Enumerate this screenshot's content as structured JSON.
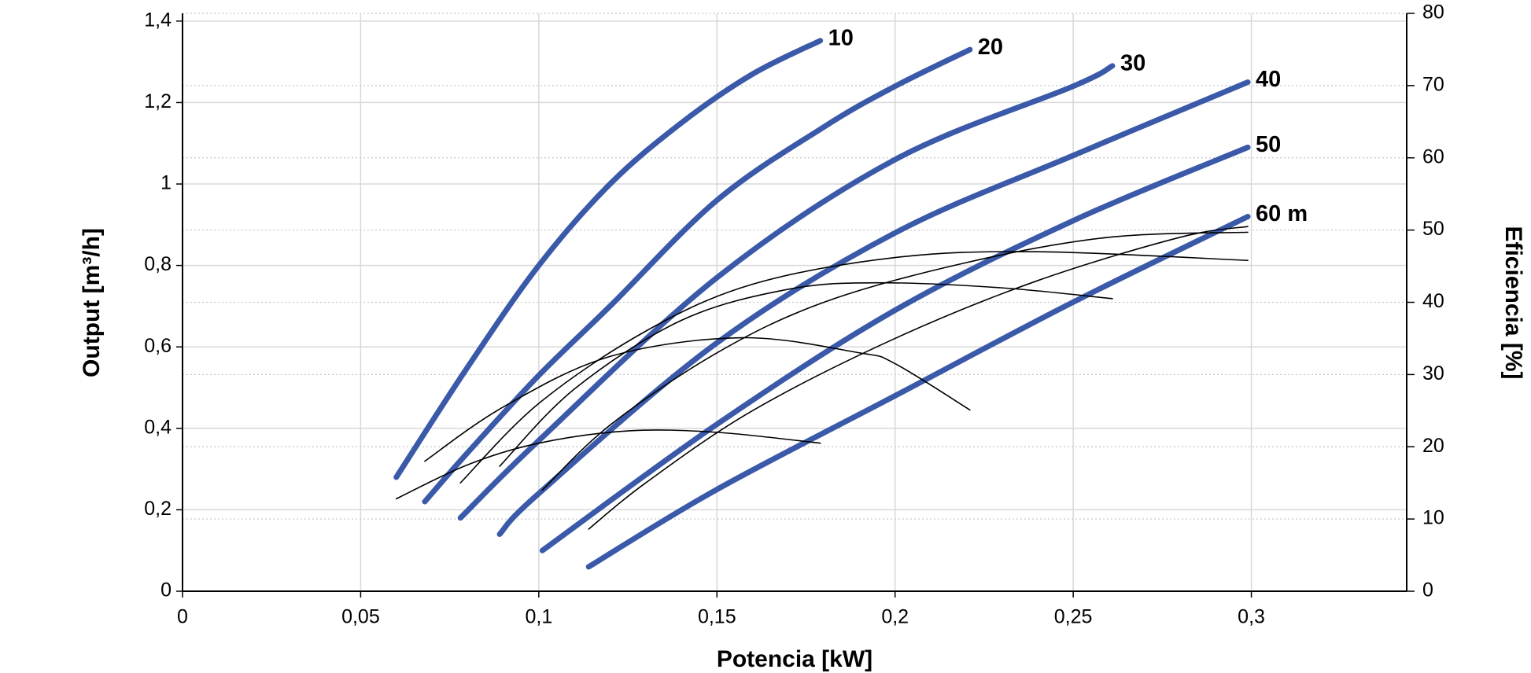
{
  "chart_data": {
    "type": "line",
    "x_label": "Potencia [kW]",
    "y_label": "Output [m³/h]",
    "y2_label": "Eficiencia [%]",
    "xlim": [
      0,
      0.3436
    ],
    "ylim": [
      0,
      1.419
    ],
    "y2lim": [
      0,
      80
    ],
    "xticks": [
      0,
      {
        "value": 0.05,
        "label": "0,05"
      },
      {
        "value": 0.1,
        "label": "0,1"
      },
      {
        "value": 0.15,
        "label": "0,15"
      },
      {
        "value": 0.2,
        "label": "0,2"
      },
      {
        "value": 0.25,
        "label": "0,25"
      },
      {
        "value": 0.3,
        "label": "0,3"
      }
    ],
    "yticks": [
      0,
      {
        "value": 0.2,
        "label": "0,2"
      },
      {
        "value": 0.4,
        "label": "0,4"
      },
      {
        "value": 0.6,
        "label": "0,6"
      },
      {
        "value": 0.8,
        "label": "0,8"
      },
      1,
      {
        "value": 1.2,
        "label": "1,2"
      },
      {
        "value": 1.4,
        "label": "1,4"
      }
    ],
    "y2ticks": [
      0,
      10,
      20,
      30,
      40,
      50,
      60,
      70,
      80
    ],
    "grid": true,
    "series": [
      {
        "name": "10",
        "color": "#3a59a8",
        "x": [
          0.06,
          0.08,
          0.1,
          0.12,
          0.14,
          0.16,
          0.179
        ],
        "values": [
          0.28,
          0.55,
          0.8,
          1.0,
          1.15,
          1.27,
          1.352
        ]
      },
      {
        "name": "20",
        "color": "#3a59a8",
        "x": [
          0.068,
          0.08,
          0.1,
          0.12,
          0.15,
          0.18,
          0.2,
          0.221
        ],
        "values": [
          0.22,
          0.34,
          0.53,
          0.7,
          0.96,
          1.14,
          1.24,
          1.33
        ]
      },
      {
        "name": "30",
        "color": "#3a59a8",
        "x": [
          0.078,
          0.1,
          0.15,
          0.2,
          0.25,
          0.261
        ],
        "values": [
          0.18,
          0.37,
          0.77,
          1.06,
          1.24,
          1.29
        ]
      },
      {
        "name": "40",
        "color": "#3a59a8",
        "x": [
          0.089,
          0.1,
          0.15,
          0.2,
          0.25,
          0.299
        ],
        "values": [
          0.14,
          0.24,
          0.61,
          0.88,
          1.07,
          1.25
        ]
      },
      {
        "name": "50",
        "color": "#3a59a8",
        "x": [
          0.101,
          0.15,
          0.2,
          0.25,
          0.299
        ],
        "values": [
          0.1,
          0.41,
          0.69,
          0.91,
          1.09
        ]
      },
      {
        "name": "60 m",
        "color": "#3a59a8",
        "x": [
          0.114,
          0.15,
          0.2,
          0.25,
          0.299
        ],
        "values": [
          0.06,
          0.25,
          0.48,
          0.71,
          0.92
        ]
      },
      {
        "axis": "y2",
        "color": "#000000",
        "x": [
          0.06,
          0.08,
          0.1,
          0.125,
          0.15,
          0.179
        ],
        "values": [
          12.8,
          17.5,
          20.5,
          22.2,
          22,
          20.5
        ]
      },
      {
        "axis": "y2",
        "color": "#000000",
        "x": [
          0.068,
          0.09,
          0.12,
          0.157,
          0.19,
          0.2,
          0.221
        ],
        "values": [
          18,
          25.5,
          32.5,
          35.1,
          33,
          31.5,
          25.1
        ]
      },
      {
        "axis": "y2",
        "color": "#000000",
        "x": [
          0.089,
          0.11,
          0.14,
          0.17,
          0.195,
          0.23,
          0.261
        ],
        "values": [
          17.3,
          28,
          37.5,
          41.8,
          42.7,
          42,
          40.5
        ]
      },
      {
        "axis": "y2",
        "color": "#000000",
        "x": [
          0.078,
          0.1,
          0.13,
          0.16,
          0.2,
          0.24,
          0.299
        ],
        "values": [
          15,
          26,
          36,
          42.5,
          46.2,
          47,
          45.8
        ]
      },
      {
        "axis": "y2",
        "color": "#000000",
        "x": [
          0.101,
          0.12,
          0.15,
          0.18,
          0.22,
          0.26,
          0.299
        ],
        "values": [
          14,
          23,
          33,
          40,
          45.5,
          49,
          49.7
        ]
      },
      {
        "axis": "y2",
        "color": "#000000",
        "x": [
          0.114,
          0.13,
          0.16,
          0.2,
          0.24,
          0.28,
          0.299
        ],
        "values": [
          8.6,
          15,
          25,
          35,
          43,
          49,
          50.5
        ]
      }
    ]
  }
}
